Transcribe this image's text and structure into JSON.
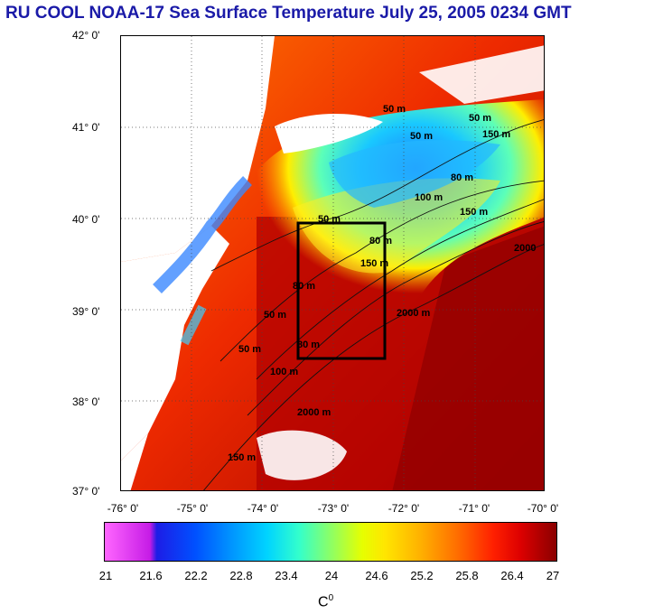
{
  "title": "RU COOL  NOAA-17 Sea Surface Temperature July 25, 2005 0234 GMT",
  "map": {
    "lat_labels": [
      "42° 0'",
      "41° 0'",
      "40° 0'",
      "39° 0'",
      "38° 0'",
      "37° 0'"
    ],
    "lon_labels": [
      "-76° 0'",
      "-75° 0'",
      "-74° 0'",
      "-73° 0'",
      "-72° 0'",
      "-71° 0'",
      "-70° 0'"
    ],
    "extent": {
      "lon_min": -76,
      "lon_max": -70,
      "lat_min": 37,
      "lat_max": 42
    },
    "study_box": {
      "lon_min": -73.5,
      "lon_max": -72.5,
      "lat_min": 38.5,
      "lat_max": 40.0
    },
    "contour_labels": [
      "50 m",
      "50 m",
      "50 m",
      "50 m",
      "80 m",
      "80 m",
      "80 m",
      "100 m",
      "150 m",
      "150 m",
      "150 m",
      "2000",
      "2000 m",
      "2000 m",
      "50 m",
      "50 m",
      "80 m",
      "100 m",
      "150 m"
    ]
  },
  "colorbar": {
    "labels": [
      "21",
      "21.6",
      "22.2",
      "22.8",
      "23.4",
      "24",
      "24.6",
      "25.2",
      "25.8",
      "26.4",
      "27"
    ],
    "unit": "C",
    "unit_sup": "0"
  },
  "colors": {
    "title": "#1a1aa8",
    "land": "#ffffff",
    "warm": "#c40000",
    "cold": "#1f7dff"
  }
}
